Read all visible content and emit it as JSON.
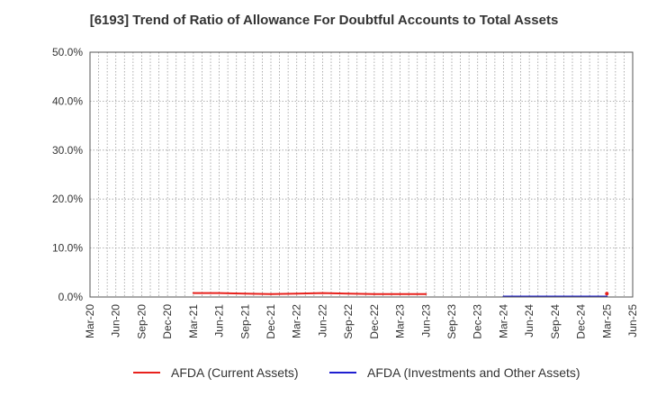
{
  "chart_data": {
    "type": "line",
    "title": "[6193]  Trend of Ratio of Allowance For Doubtful Accounts to Total Assets",
    "xlabel": "",
    "ylabel": "",
    "x_ticks": [
      "Mar-20",
      "Jun-20",
      "Sep-20",
      "Dec-20",
      "Mar-21",
      "Jun-21",
      "Sep-21",
      "Dec-21",
      "Mar-22",
      "Jun-22",
      "Sep-22",
      "Dec-22",
      "Mar-23",
      "Jun-23",
      "Sep-23",
      "Dec-23",
      "Mar-24",
      "Jun-24",
      "Sep-24",
      "Dec-24",
      "Mar-25",
      "Jun-25"
    ],
    "y_ticks": [
      "0.0%",
      "10.0%",
      "20.0%",
      "30.0%",
      "40.0%",
      "50.0%"
    ],
    "ylim": [
      0,
      50
    ],
    "y_unit": "%",
    "grid": true,
    "legend_position": "bottom",
    "series": [
      {
        "name": "AFDA (Current Assets)",
        "color": "#e8211c",
        "x": [
          "Mar-21",
          "Jun-21",
          "Sep-21",
          "Dec-21",
          "Mar-22",
          "Jun-22",
          "Sep-22",
          "Dec-22",
          "Mar-23",
          "Jun-23"
        ],
        "values": [
          0.8,
          0.8,
          0.7,
          0.6,
          0.7,
          0.8,
          0.7,
          0.6,
          0.6,
          0.6
        ]
      },
      {
        "name": "AFDA (Investments and Other Assets)",
        "color": "#1f1fd0",
        "x": [
          "Mar-24",
          "Jun-24",
          "Sep-24",
          "Dec-24",
          "Mar-25"
        ],
        "values": [
          0.1,
          0.1,
          0.1,
          0.1,
          0.1
        ]
      }
    ],
    "extra_points": [
      {
        "series": "AFDA (Current Assets)",
        "x": "Mar-25",
        "value": 0.7,
        "color": "#e8211c"
      }
    ]
  }
}
